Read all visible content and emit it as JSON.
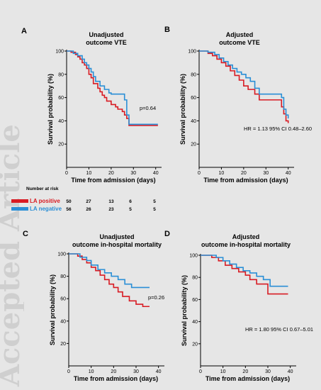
{
  "watermark": "Accepted Article",
  "colors": {
    "la_positive": "#d81b23",
    "la_negative": "#2b8fd6"
  },
  "panels": [
    {
      "letter": "A",
      "title_lines": [
        "Unadjusted",
        "outcome VTE"
      ],
      "xlabel": "Time from admission (days)",
      "ylabel": "Survival probability (%)",
      "annotation": "p=0.64",
      "chart_data": {
        "type": "line",
        "xlim": [
          0,
          42
        ],
        "ylim": [
          0,
          100
        ],
        "xticks": [
          0,
          10,
          20,
          30,
          40
        ],
        "yticks": [
          20,
          40,
          60,
          80,
          100
        ],
        "series": [
          {
            "name": "LA positive",
            "x": [
              0,
              2,
              4,
              5,
              6,
              7,
              8,
              9,
              10,
              11,
              12,
              14,
              15,
              16,
              17,
              18,
              20,
              22,
              23,
              25,
              26,
              27,
              28,
              41
            ],
            "y": [
              100,
              99,
              97,
              95,
              93,
              90,
              88,
              85,
              80,
              77,
              72,
              68,
              65,
              62,
              60,
              57,
              54,
              52,
              50,
              48,
              45,
              42,
              36,
              36
            ]
          },
          {
            "name": "LA negative",
            "x": [
              0,
              3,
              5,
              7,
              8,
              9,
              10,
              11,
              12,
              13,
              15,
              17,
              19,
              20,
              22,
              25,
              26,
              27,
              28,
              41
            ],
            "y": [
              100,
              98,
              96,
              93,
              90,
              88,
              85,
              82,
              78,
              74,
              70,
              67,
              64,
              63,
              63,
              63,
              58,
              45,
              37,
              37
            ]
          }
        ]
      }
    },
    {
      "letter": "B",
      "title_lines": [
        "Adjusted",
        "outcome VTE"
      ],
      "xlabel": "Time from admission (days)",
      "ylabel": "Survival probability (%)",
      "annotation": "HR = 1.13 95% CI 0.48–2.60",
      "chart_data": {
        "type": "line",
        "xlim": [
          0,
          42
        ],
        "ylim": [
          0,
          100
        ],
        "xticks": [
          0,
          10,
          20,
          30,
          40
        ],
        "yticks": [
          20,
          40,
          60,
          80,
          100
        ],
        "series": [
          {
            "name": "LA positive",
            "x": [
              0,
              4,
              6,
              8,
              10,
              12,
              14,
              16,
              18,
              20,
              22,
              25,
              27,
              37,
              38,
              39,
              40
            ],
            "y": [
              100,
              98,
              96,
              93,
              90,
              87,
              83,
              79,
              75,
              70,
              67,
              63,
              58,
              52,
              46,
              40,
              38
            ]
          },
          {
            "name": "LA negative",
            "x": [
              0,
              4,
              7,
              9,
              11,
              13,
              15,
              17,
              19,
              21,
              23,
              25,
              27,
              37,
              38,
              39,
              40
            ],
            "y": [
              100,
              99,
              97,
              94,
              91,
              88,
              85,
              82,
              80,
              77,
              74,
              68,
              63,
              60,
              50,
              45,
              42
            ]
          }
        ]
      }
    },
    {
      "letter": "C",
      "title_lines": [
        "Unadjusted",
        "outcome in-hospital mortality"
      ],
      "xlabel": "Time from admission (days)",
      "ylabel": "Survival probability (%)",
      "annotation": "p=0.26",
      "chart_data": {
        "type": "line",
        "xlim": [
          0,
          42
        ],
        "ylim": [
          0,
          100
        ],
        "xticks": [
          0,
          10,
          20,
          30,
          40
        ],
        "yticks": [
          20,
          40,
          60,
          80,
          100
        ],
        "series": [
          {
            "name": "LA positive",
            "x": [
              0,
              4,
              6,
              8,
              10,
              12,
              14,
              16,
              18,
              20,
              22,
              24,
              27,
              30,
              33,
              36
            ],
            "y": [
              100,
              98,
              95,
              92,
              88,
              85,
              81,
              77,
              73,
              70,
              66,
              62,
              58,
              55,
              53,
              53
            ]
          },
          {
            "name": "LA negative",
            "x": [
              0,
              5,
              8,
              10,
              13,
              16,
              19,
              22,
              25,
              28,
              36
            ],
            "y": [
              100,
              97,
              94,
              90,
              86,
              83,
              80,
              77,
              73,
              70,
              70
            ]
          }
        ]
      }
    },
    {
      "letter": "D",
      "title_lines": [
        "Adjusted",
        "outcome in-hospital mortality"
      ],
      "xlabel": "Time from admission (days)",
      "ylabel": "Survival probability (%)",
      "annotation": "HR = 1.80 95% CI 0.67–5.01",
      "chart_data": {
        "type": "line",
        "xlim": [
          0,
          42
        ],
        "ylim": [
          0,
          100
        ],
        "xticks": [
          0,
          10,
          20,
          30,
          40
        ],
        "yticks": [
          20,
          40,
          60,
          80,
          100
        ],
        "series": [
          {
            "name": "LA positive",
            "x": [
              0,
              5,
              8,
              11,
              14,
              17,
              20,
              22,
              25,
              30,
              39
            ],
            "y": [
              100,
              98,
              95,
              91,
              88,
              85,
              82,
              78,
              74,
              65,
              65
            ]
          },
          {
            "name": "LA negative",
            "x": [
              0,
              7,
              10,
              13,
              16,
              19,
              22,
              25,
              28,
              31,
              39
            ],
            "y": [
              100,
              98,
              95,
              92,
              89,
              86,
              84,
              81,
              78,
              72,
              72
            ]
          }
        ]
      }
    }
  ],
  "number_at_risk": {
    "heading": "Number at risk",
    "rows": [
      {
        "label": "LA positive",
        "values": [
          "50",
          "27",
          "13",
          "6",
          "5"
        ]
      },
      {
        "label": "LA negative",
        "values": [
          "56",
          "26",
          "23",
          "5",
          "5"
        ]
      }
    ]
  }
}
